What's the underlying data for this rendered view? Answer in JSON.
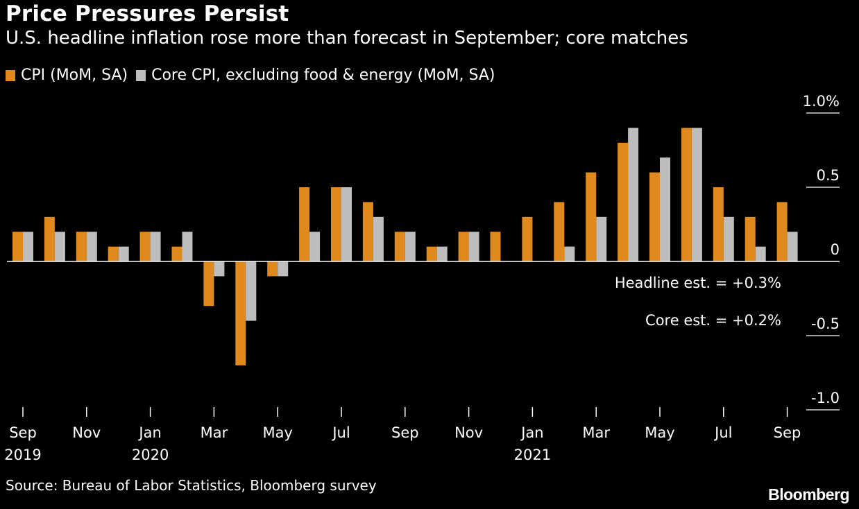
{
  "title": "Price Pressures Persist",
  "subtitle": "U.S. headline inflation rose more than forecast in September; core matches",
  "legend": [
    {
      "label": "CPI (MoM, SA)",
      "color": "#e08a1e"
    },
    {
      "label": "Core CPI, excluding food & energy (MoM, SA)",
      "color": "#bdbdbd"
    }
  ],
  "source": "Source: Bureau of Labor Statistics, Bloomberg survey",
  "logo": "Bloomberg",
  "chart_data": {
    "type": "bar",
    "categories": [
      "Sep 2019",
      "Oct 2019",
      "Nov 2019",
      "Dec 2019",
      "Jan 2020",
      "Feb 2020",
      "Mar 2020",
      "Apr 2020",
      "May 2020",
      "Jun 2020",
      "Jul 2020",
      "Aug 2020",
      "Sep 2020",
      "Oct 2020",
      "Nov 2020",
      "Dec 2020",
      "Jan 2021",
      "Feb 2021",
      "Mar 2021",
      "Apr 2021",
      "May 2021",
      "Jun 2021",
      "Jul 2021",
      "Aug 2021",
      "Sep 2021"
    ],
    "series": [
      {
        "name": "CPI (MoM, SA)",
        "color": "#e08a1e",
        "values": [
          0.2,
          0.3,
          0.2,
          0.1,
          0.2,
          0.1,
          -0.3,
          -0.7,
          -0.1,
          0.5,
          0.5,
          0.4,
          0.2,
          0.1,
          0.2,
          0.2,
          0.3,
          0.4,
          0.6,
          0.8,
          0.6,
          0.9,
          0.5,
          0.3,
          0.4
        ]
      },
      {
        "name": "Core CPI, excluding food & energy (MoM, SA)",
        "color": "#bdbdbd",
        "values": [
          0.2,
          0.2,
          0.2,
          0.1,
          0.2,
          0.2,
          -0.1,
          -0.4,
          -0.1,
          0.2,
          0.5,
          0.3,
          0.2,
          0.1,
          0.2,
          0.0,
          0.0,
          0.1,
          0.3,
          0.9,
          0.7,
          0.9,
          0.3,
          0.1,
          0.2
        ]
      }
    ],
    "ylim": [
      -1.0,
      1.0
    ],
    "yticks": [
      {
        "value": 1.0,
        "label": "1.0%"
      },
      {
        "value": 0.5,
        "label": "0.5"
      },
      {
        "value": 0,
        "label": "0"
      },
      {
        "value": -0.5,
        "label": "-0.5"
      },
      {
        "value": -1.0,
        "label": "-1.0"
      }
    ],
    "xticks": [
      {
        "index": 0,
        "label": "Sep",
        "year": "2019"
      },
      {
        "index": 2,
        "label": "Nov",
        "year": ""
      },
      {
        "index": 4,
        "label": "Jan",
        "year": "2020"
      },
      {
        "index": 6,
        "label": "Mar",
        "year": ""
      },
      {
        "index": 8,
        "label": "May",
        "year": ""
      },
      {
        "index": 10,
        "label": "Jul",
        "year": ""
      },
      {
        "index": 12,
        "label": "Sep",
        "year": ""
      },
      {
        "index": 14,
        "label": "Nov",
        "year": ""
      },
      {
        "index": 16,
        "label": "Jan",
        "year": "2021"
      },
      {
        "index": 18,
        "label": "Mar",
        "year": ""
      },
      {
        "index": 20,
        "label": "May",
        "year": ""
      },
      {
        "index": 22,
        "label": "Jul",
        "year": ""
      },
      {
        "index": 24,
        "label": "Sep",
        "year": ""
      }
    ],
    "annotations": [
      {
        "text": "Headline est. = +0.3%"
      },
      {
        "text": "Core est. = +0.2%"
      }
    ],
    "grid": false,
    "legend_position": "top-left"
  }
}
